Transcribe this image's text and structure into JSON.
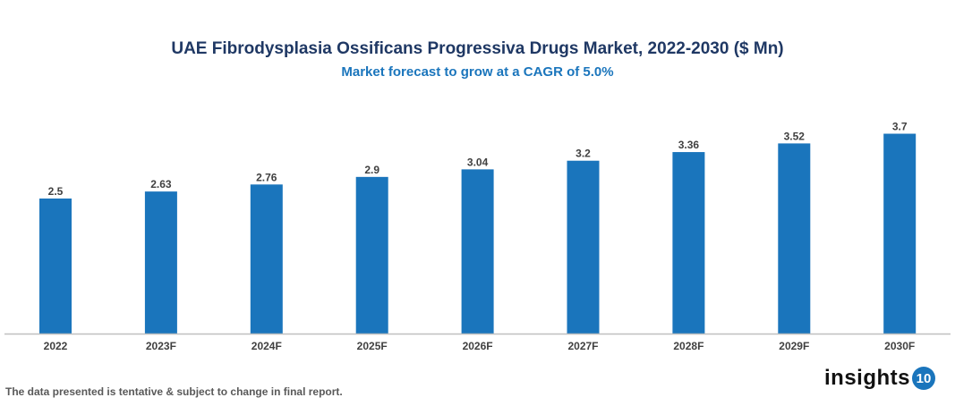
{
  "chart_data": {
    "type": "bar",
    "title": "UAE Fibrodysplasia Ossificans Progressiva Drugs Market, 2022-2030 ($ Mn)",
    "subtitle": "Market forecast to grow at a CAGR of 5.0%",
    "categories": [
      "2022",
      "2023F",
      "2024F",
      "2025F",
      "2026F",
      "2027F",
      "2028F",
      "2029F",
      "2030F"
    ],
    "values": [
      2.5,
      2.63,
      2.76,
      2.9,
      3.04,
      3.2,
      3.36,
      3.52,
      3.7
    ],
    "xlabel": "",
    "ylabel": "",
    "ylim": [
      0,
      3.7
    ],
    "grid": false,
    "legend": "none",
    "colors": {
      "bar": "#1a75bc",
      "title": "#1f3864",
      "subtitle": "#1a75bc",
      "label": "#404040"
    }
  },
  "footnote": "The data presented is tentative & subject to change in final report.",
  "logo": {
    "text": "insights",
    "badge": "10"
  }
}
